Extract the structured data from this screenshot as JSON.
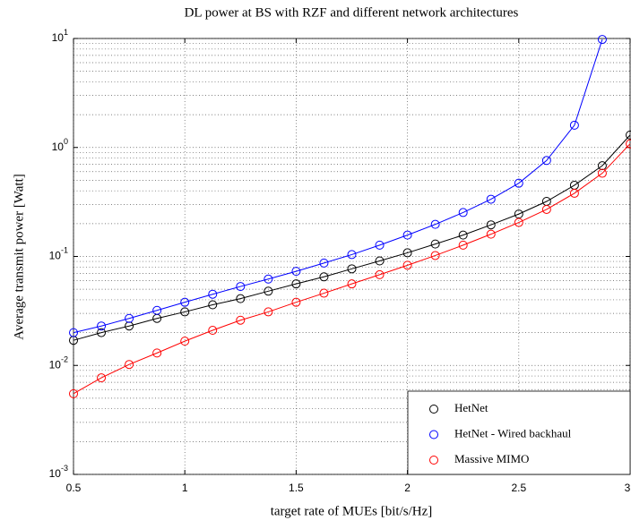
{
  "chart_data": {
    "type": "line",
    "title": "DL power at BS with RZF and different network architectures",
    "xlabel": "target rate of MUEs [bit/s/Hz]",
    "ylabel": "Average transmit power [Watt]",
    "x": [
      0.5,
      0.625,
      0.75,
      0.875,
      1,
      1.125,
      1.25,
      1.375,
      1.5,
      1.625,
      1.75,
      1.875,
      2,
      2.125,
      2.25,
      2.375,
      2.5,
      2.625,
      2.75,
      2.875,
      3
    ],
    "series": [
      {
        "name": "HetNet",
        "color": "#000000",
        "values": [
          0.017,
          0.02,
          0.023,
          0.027,
          0.031,
          0.036,
          0.041,
          0.048,
          0.056,
          0.065,
          0.077,
          0.091,
          0.108,
          0.13,
          0.157,
          0.195,
          0.245,
          0.32,
          0.45,
          0.68,
          1.3
        ]
      },
      {
        "name": "HetNet - Wired backhaul",
        "color": "#0000ff",
        "values": [
          0.02,
          0.023,
          0.027,
          0.032,
          0.038,
          0.045,
          0.053,
          0.062,
          0.073,
          0.087,
          0.104,
          0.127,
          0.157,
          0.197,
          0.253,
          0.335,
          0.47,
          0.76,
          1.6,
          9.8,
          null
        ]
      },
      {
        "name": "Massive MIMO",
        "color": "#ff0000",
        "values": [
          0.0055,
          0.0077,
          0.0102,
          0.013,
          0.0167,
          0.021,
          0.026,
          0.031,
          0.038,
          0.046,
          0.056,
          0.068,
          0.083,
          0.102,
          0.127,
          0.16,
          0.205,
          0.27,
          0.38,
          0.58,
          1.08
        ]
      }
    ],
    "xlim": [
      0.5,
      3
    ],
    "xticks": [
      0.5,
      1,
      1.5,
      2,
      2.5,
      3
    ],
    "ylim": [
      0.001,
      10
    ],
    "yticks": [
      {
        "value": 0.001,
        "label": "10^-3"
      },
      {
        "value": 0.01,
        "label": "10^-2"
      },
      {
        "value": 0.1,
        "label": "10^-1"
      },
      {
        "value": 1,
        "label": "10^0"
      },
      {
        "value": 10,
        "label": "10^1"
      }
    ],
    "ylog": true,
    "grid": true,
    "legend": "lower right"
  }
}
